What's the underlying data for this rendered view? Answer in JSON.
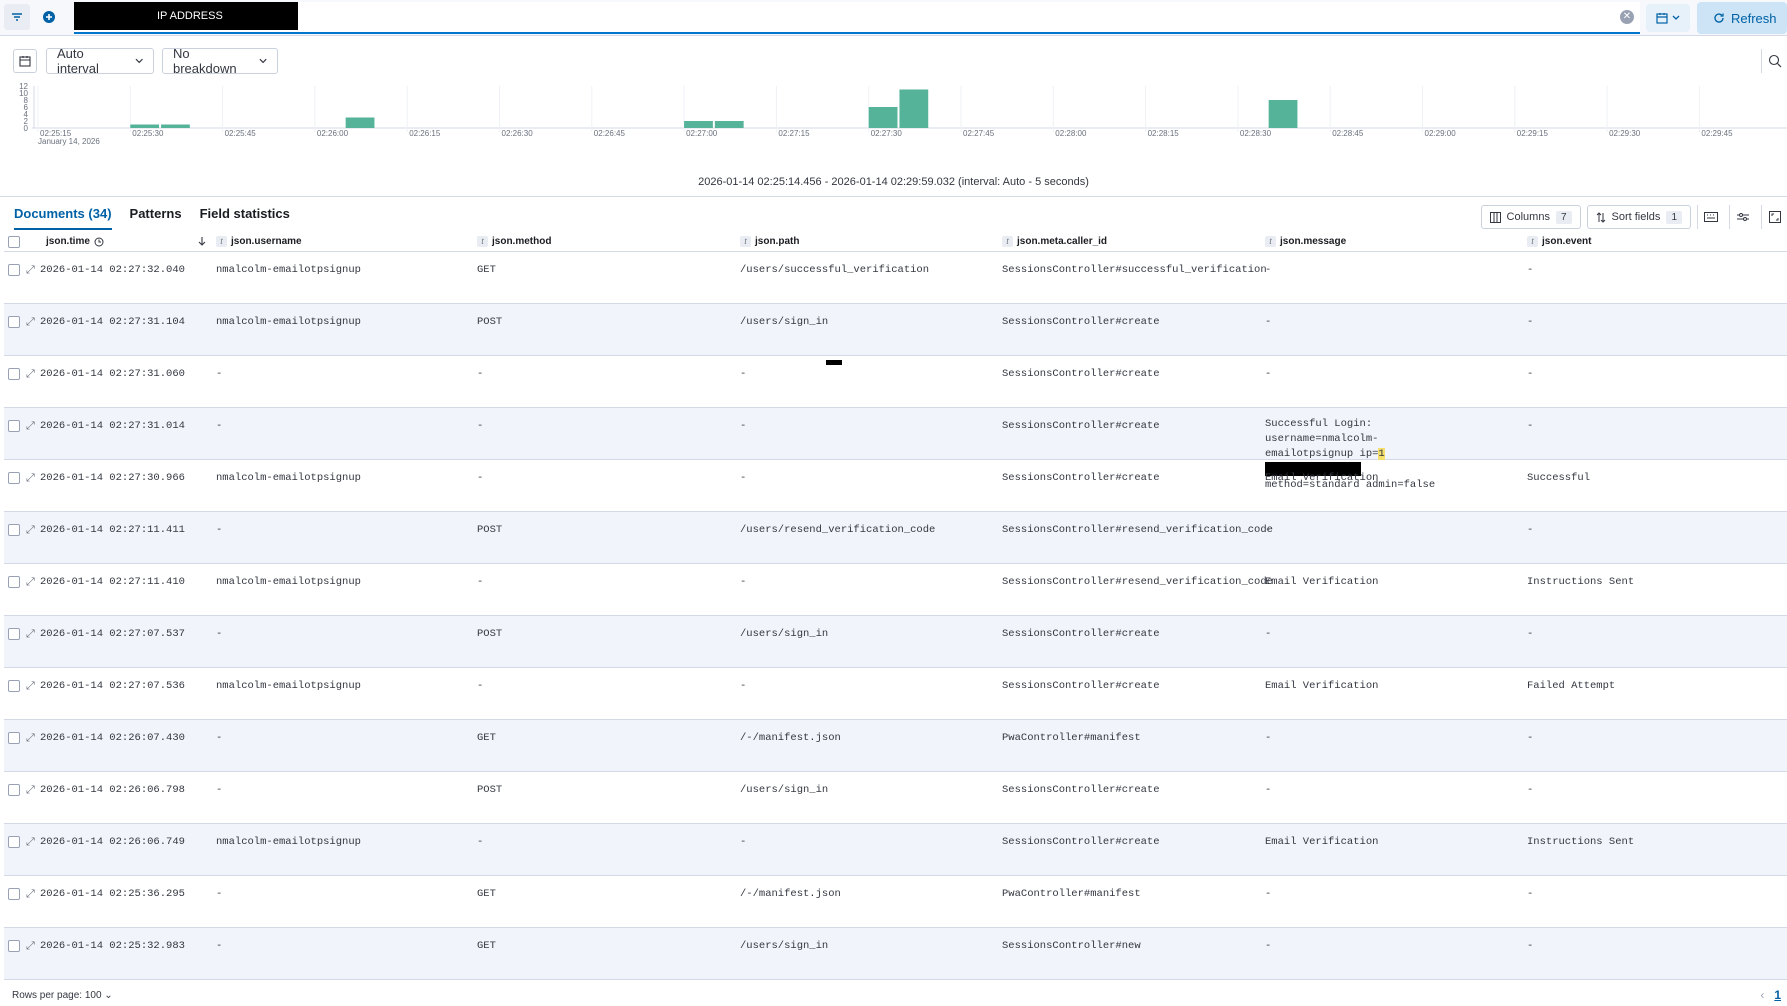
{
  "query": {
    "redacted_text": "IP ADDRESS"
  },
  "toolbar": {
    "refresh_label": "Refresh",
    "interval_label": "Auto interval",
    "breakdown_label": "No breakdown"
  },
  "chart_data": {
    "type": "bar",
    "y_ticks": [
      "12",
      "10",
      "8",
      "6",
      "4",
      "2",
      "0"
    ],
    "ylim": [
      0,
      12
    ],
    "x_tick_labels": [
      "02:25:15",
      "02:25:30",
      "02:25:45",
      "02:26:00",
      "02:26:15",
      "02:26:30",
      "02:26:45",
      "02:27:00",
      "02:27:15",
      "02:27:30",
      "02:27:45",
      "02:28:00",
      "02:28:15",
      "02:28:30",
      "02:28:45",
      "02:29:00",
      "02:29:15",
      "02:29:30",
      "02:29:45"
    ],
    "x_sub_label": "January 14, 2026",
    "bars": [
      {
        "x": "02:25:30",
        "value": 1
      },
      {
        "x": "02:25:35",
        "value": 1
      },
      {
        "x": "02:26:05",
        "value": 3
      },
      {
        "x": "02:27:00",
        "value": 2
      },
      {
        "x": "02:27:05",
        "value": 2
      },
      {
        "x": "02:27:30",
        "value": 6
      },
      {
        "x": "02:27:35",
        "value": 11
      },
      {
        "x": "02:28:35",
        "value": 8
      }
    ],
    "color": "#54b399"
  },
  "time_range": "2026-01-14 02:25:14.456 - 2026-01-14 02:29:59.032 (interval: Auto - 5 seconds)",
  "tabs": [
    "Documents (34)",
    "Patterns",
    "Field statistics"
  ],
  "grid_tools": {
    "columns_label": "Columns",
    "columns_count": "7",
    "sort_label": "Sort fields",
    "sort_count": "1"
  },
  "columns": [
    "json.time",
    "json.username",
    "json.method",
    "json.path",
    "json.meta.caller_id",
    "json.message",
    "json.event"
  ],
  "rows": [
    {
      "time": "2026-01-14 02:27:32.040",
      "username": "nmalcolm-emailotpsignup",
      "method": "GET",
      "path": "/users/successful_verification",
      "caller": "SessionsController#successful_verification",
      "message": "-",
      "event": "-"
    },
    {
      "time": "2026-01-14 02:27:31.104",
      "username": "nmalcolm-emailotpsignup",
      "method": "POST",
      "path": "/users/sign_in",
      "caller": "SessionsController#create",
      "message": "-",
      "event": "-"
    },
    {
      "time": "2026-01-14 02:27:31.060",
      "username": "-",
      "method": "-",
      "path": "-",
      "caller": "SessionsController#create",
      "message": "-",
      "event": "-"
    },
    {
      "time": "2026-01-14 02:27:31.014",
      "username": "-",
      "method": "-",
      "path": "-",
      "caller": "SessionsController#create",
      "message": "",
      "event": "-"
    },
    {
      "time": "2026-01-14 02:27:30.966",
      "username": "nmalcolm-emailotpsignup",
      "method": "-",
      "path": "-",
      "caller": "SessionsController#create",
      "message": "Email Verification",
      "event": "Successful"
    },
    {
      "time": "2026-01-14 02:27:11.411",
      "username": "-",
      "method": "POST",
      "path": "/users/resend_verification_code",
      "caller": "SessionsController#resend_verification_code",
      "message": "-",
      "event": "-"
    },
    {
      "time": "2026-01-14 02:27:11.410",
      "username": "nmalcolm-emailotpsignup",
      "method": "-",
      "path": "-",
      "caller": "SessionsController#resend_verification_code",
      "message": "Email Verification",
      "event": "Instructions Sent"
    },
    {
      "time": "2026-01-14 02:27:07.537",
      "username": "-",
      "method": "POST",
      "path": "/users/sign_in",
      "caller": "SessionsController#create",
      "message": "-",
      "event": "-"
    },
    {
      "time": "2026-01-14 02:27:07.536",
      "username": "nmalcolm-emailotpsignup",
      "method": "-",
      "path": "-",
      "caller": "SessionsController#create",
      "message": "Email Verification",
      "event": "Failed Attempt"
    },
    {
      "time": "2026-01-14 02:26:07.430",
      "username": "-",
      "method": "GET",
      "path": "/-/manifest.json",
      "caller": "PwaController#manifest",
      "message": "-",
      "event": "-"
    },
    {
      "time": "2026-01-14 02:26:06.798",
      "username": "-",
      "method": "POST",
      "path": "/users/sign_in",
      "caller": "SessionsController#create",
      "message": "-",
      "event": "-"
    },
    {
      "time": "2026-01-14 02:26:06.749",
      "username": "nmalcolm-emailotpsignup",
      "method": "-",
      "path": "-",
      "caller": "SessionsController#create",
      "message": "Email Verification",
      "event": "Instructions Sent"
    },
    {
      "time": "2026-01-14 02:25:36.295",
      "username": "-",
      "method": "GET",
      "path": "/-/manifest.json",
      "caller": "PwaController#manifest",
      "message": "-",
      "event": "-"
    },
    {
      "time": "2026-01-14 02:25:32.983",
      "username": "-",
      "method": "GET",
      "path": "/users/sign_in",
      "caller": "SessionsController#new",
      "message": "-",
      "event": "-"
    }
  ],
  "multiline_message": {
    "line1": "Successful Login: username=nmalcolm-",
    "line2_prefix": "emailotpsignup ip=",
    "line2_hl": "1",
    "line3": "method=standard admin=false"
  },
  "footer": {
    "rows_per_page": "Rows per page: 100",
    "page": "1"
  }
}
